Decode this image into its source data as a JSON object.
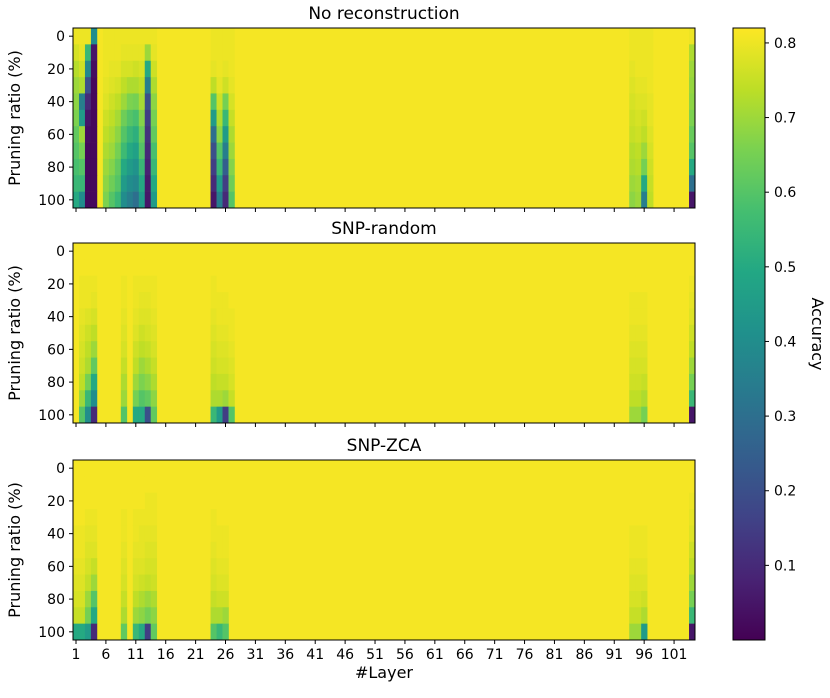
{
  "chart_data": {
    "type": "heatmap",
    "panels": [
      {
        "title": "No reconstruction",
        "ylabel": "Pruning ratio (%)",
        "dark_columns": [
          {
            "layer": 1,
            "values": [
              0.8,
              0.77,
              0.73,
              0.7,
              0.68,
              0.66,
              0.62,
              0.6,
              0.58,
              0.55,
              0.5
            ]
          },
          {
            "layer": 2,
            "values": [
              0.8,
              0.79,
              0.76,
              0.72,
              0.35,
              0.45,
              0.7,
              0.65,
              0.6,
              0.55,
              0.4
            ]
          },
          {
            "layer": 3,
            "values": [
              0.8,
              0.55,
              0.38,
              0.2,
              0.1,
              0.05,
              0.03,
              0.02,
              0.02,
              0.02,
              0.02
            ]
          },
          {
            "layer": 4,
            "values": [
              0.4,
              0.05,
              0.03,
              0.02,
              0.02,
              0.02,
              0.02,
              0.02,
              0.02,
              0.02,
              0.02
            ]
          },
          {
            "layer": 6,
            "values": [
              0.8,
              0.8,
              0.8,
              0.79,
              0.78,
              0.76,
              0.74,
              0.72,
              0.7,
              0.68,
              0.66
            ]
          },
          {
            "layer": 7,
            "values": [
              0.8,
              0.8,
              0.79,
              0.78,
              0.76,
              0.74,
              0.72,
              0.7,
              0.67,
              0.64,
              0.6
            ]
          },
          {
            "layer": 8,
            "values": [
              0.8,
              0.8,
              0.79,
              0.77,
              0.74,
              0.71,
              0.68,
              0.65,
              0.62,
              0.6,
              0.55
            ]
          },
          {
            "layer": 9,
            "values": [
              0.8,
              0.79,
              0.77,
              0.74,
              0.7,
              0.64,
              0.6,
              0.56,
              0.5,
              0.45,
              0.4
            ]
          },
          {
            "layer": 10,
            "values": [
              0.8,
              0.79,
              0.77,
              0.72,
              0.66,
              0.6,
              0.55,
              0.5,
              0.45,
              0.4,
              0.35
            ]
          },
          {
            "layer": 11,
            "values": [
              0.8,
              0.79,
              0.76,
              0.72,
              0.65,
              0.58,
              0.52,
              0.47,
              0.42,
              0.38,
              0.3
            ]
          },
          {
            "layer": 12,
            "values": [
              0.8,
              0.79,
              0.77,
              0.74,
              0.71,
              0.67,
              0.63,
              0.6,
              0.55,
              0.5,
              0.45
            ]
          },
          {
            "layer": 13,
            "values": [
              0.8,
              0.7,
              0.5,
              0.35,
              0.2,
              0.15,
              0.12,
              0.1,
              0.08,
              0.06,
              0.05
            ]
          },
          {
            "layer": 14,
            "values": [
              0.8,
              0.79,
              0.76,
              0.72,
              0.68,
              0.65,
              0.62,
              0.58,
              0.55,
              0.5,
              0.45
            ]
          },
          {
            "layer": 24,
            "values": [
              0.8,
              0.8,
              0.79,
              0.74,
              0.6,
              0.45,
              0.3,
              0.2,
              0.15,
              0.1,
              0.05
            ]
          },
          {
            "layer": 25,
            "values": [
              0.8,
              0.8,
              0.8,
              0.79,
              0.76,
              0.72,
              0.68,
              0.6,
              0.55,
              0.45,
              0.35
            ]
          },
          {
            "layer": 26,
            "values": [
              0.8,
              0.8,
              0.79,
              0.76,
              0.65,
              0.55,
              0.45,
              0.35,
              0.25,
              0.15,
              0.1
            ]
          },
          {
            "layer": 27,
            "values": [
              0.8,
              0.8,
              0.8,
              0.79,
              0.77,
              0.75,
              0.72,
              0.7,
              0.67,
              0.64,
              0.6
            ]
          },
          {
            "layer": 94,
            "values": [
              0.8,
              0.8,
              0.79,
              0.78,
              0.77,
              0.76,
              0.75,
              0.73,
              0.72,
              0.7,
              0.68
            ]
          },
          {
            "layer": 95,
            "values": [
              0.8,
              0.8,
              0.8,
              0.79,
              0.78,
              0.77,
              0.76,
              0.74,
              0.73,
              0.71,
              0.7
            ]
          },
          {
            "layer": 96,
            "values": [
              0.8,
              0.8,
              0.8,
              0.79,
              0.78,
              0.76,
              0.74,
              0.7,
              0.65,
              0.5,
              0.35
            ]
          },
          {
            "layer": 97,
            "values": [
              0.8,
              0.8,
              0.8,
              0.8,
              0.79,
              0.79,
              0.78,
              0.77,
              0.76,
              0.75,
              0.74
            ]
          },
          {
            "layer": 104,
            "values": [
              0.8,
              0.72,
              0.7,
              0.69,
              0.68,
              0.66,
              0.63,
              0.6,
              0.5,
              0.3,
              0.05
            ]
          }
        ]
      },
      {
        "title": "SNP-random",
        "ylabel": "Pruning ratio (%)",
        "dark_columns": [
          {
            "layer": 2,
            "values": [
              0.81,
              0.81,
              0.8,
              0.8,
              0.79,
              0.78,
              0.77,
              0.76,
              0.74,
              0.7,
              0.6
            ]
          },
          {
            "layer": 3,
            "values": [
              0.81,
              0.81,
              0.8,
              0.8,
              0.78,
              0.76,
              0.74,
              0.72,
              0.65,
              0.55,
              0.4
            ]
          },
          {
            "layer": 4,
            "values": [
              0.81,
              0.81,
              0.8,
              0.79,
              0.77,
              0.74,
              0.7,
              0.62,
              0.5,
              0.4,
              0.1
            ]
          },
          {
            "layer": 9,
            "values": [
              0.81,
              0.81,
              0.8,
              0.8,
              0.79,
              0.78,
              0.77,
              0.75,
              0.72,
              0.7,
              0.6
            ]
          },
          {
            "layer": 11,
            "values": [
              0.81,
              0.81,
              0.8,
              0.8,
              0.79,
              0.78,
              0.76,
              0.74,
              0.7,
              0.65,
              0.5
            ]
          },
          {
            "layer": 12,
            "values": [
              0.81,
              0.81,
              0.8,
              0.79,
              0.78,
              0.76,
              0.74,
              0.7,
              0.66,
              0.6,
              0.5
            ]
          },
          {
            "layer": 13,
            "values": [
              0.81,
              0.81,
              0.8,
              0.79,
              0.78,
              0.77,
              0.75,
              0.72,
              0.68,
              0.62,
              0.2
            ]
          },
          {
            "layer": 14,
            "values": [
              0.81,
              0.81,
              0.8,
              0.8,
              0.79,
              0.78,
              0.77,
              0.75,
              0.72,
              0.68,
              0.62
            ]
          },
          {
            "layer": 24,
            "values": [
              0.81,
              0.81,
              0.8,
              0.8,
              0.79,
              0.78,
              0.77,
              0.76,
              0.74,
              0.72,
              0.55
            ]
          },
          {
            "layer": 25,
            "values": [
              0.81,
              0.81,
              0.81,
              0.8,
              0.8,
              0.79,
              0.78,
              0.77,
              0.75,
              0.72,
              0.45
            ]
          },
          {
            "layer": 26,
            "values": [
              0.81,
              0.81,
              0.81,
              0.8,
              0.8,
              0.79,
              0.78,
              0.77,
              0.75,
              0.7,
              0.15
            ]
          },
          {
            "layer": 27,
            "values": [
              0.81,
              0.81,
              0.81,
              0.81,
              0.8,
              0.8,
              0.79,
              0.78,
              0.77,
              0.75,
              0.6
            ]
          },
          {
            "layer": 94,
            "values": [
              0.81,
              0.81,
              0.81,
              0.8,
              0.8,
              0.79,
              0.78,
              0.77,
              0.76,
              0.74,
              0.7
            ]
          },
          {
            "layer": 95,
            "values": [
              0.81,
              0.81,
              0.81,
              0.8,
              0.8,
              0.79,
              0.78,
              0.77,
              0.76,
              0.74,
              0.7
            ]
          },
          {
            "layer": 96,
            "values": [
              0.81,
              0.81,
              0.81,
              0.8,
              0.8,
              0.79,
              0.78,
              0.77,
              0.75,
              0.72,
              0.65
            ]
          },
          {
            "layer": 104,
            "values": [
              0.81,
              0.81,
              0.8,
              0.79,
              0.78,
              0.76,
              0.74,
              0.7,
              0.65,
              0.55,
              0.05
            ]
          }
        ]
      },
      {
        "title": "SNP-ZCA",
        "ylabel": "Pruning ratio (%)",
        "dark_columns": [
          {
            "layer": 1,
            "values": [
              0.81,
              0.81,
              0.81,
              0.81,
              0.8,
              0.8,
              0.79,
              0.78,
              0.77,
              0.75,
              0.5
            ]
          },
          {
            "layer": 2,
            "values": [
              0.81,
              0.81,
              0.81,
              0.81,
              0.8,
              0.8,
              0.79,
              0.78,
              0.77,
              0.75,
              0.5
            ]
          },
          {
            "layer": 3,
            "values": [
              0.81,
              0.81,
              0.81,
              0.8,
              0.79,
              0.78,
              0.77,
              0.75,
              0.7,
              0.65,
              0.45
            ]
          },
          {
            "layer": 4,
            "values": [
              0.81,
              0.81,
              0.81,
              0.8,
              0.79,
              0.78,
              0.75,
              0.7,
              0.6,
              0.5,
              0.1
            ]
          },
          {
            "layer": 9,
            "values": [
              0.81,
              0.81,
              0.81,
              0.8,
              0.8,
              0.79,
              0.78,
              0.77,
              0.75,
              0.72,
              0.62
            ]
          },
          {
            "layer": 11,
            "values": [
              0.81,
              0.81,
              0.81,
              0.8,
              0.8,
              0.79,
              0.78,
              0.77,
              0.74,
              0.7,
              0.55
            ]
          },
          {
            "layer": 12,
            "values": [
              0.81,
              0.81,
              0.81,
              0.8,
              0.79,
              0.79,
              0.78,
              0.76,
              0.72,
              0.68,
              0.5
            ]
          },
          {
            "layer": 13,
            "values": [
              0.81,
              0.81,
              0.8,
              0.8,
              0.79,
              0.78,
              0.77,
              0.75,
              0.7,
              0.65,
              0.15
            ]
          },
          {
            "layer": 14,
            "values": [
              0.81,
              0.81,
              0.8,
              0.8,
              0.79,
              0.78,
              0.77,
              0.76,
              0.72,
              0.68,
              0.62
            ]
          },
          {
            "layer": 24,
            "values": [
              0.81,
              0.81,
              0.81,
              0.8,
              0.8,
              0.79,
              0.78,
              0.77,
              0.75,
              0.72,
              0.6
            ]
          },
          {
            "layer": 25,
            "values": [
              0.81,
              0.81,
              0.81,
              0.81,
              0.8,
              0.8,
              0.79,
              0.78,
              0.76,
              0.72,
              0.55
            ]
          },
          {
            "layer": 26,
            "values": [
              0.81,
              0.81,
              0.81,
              0.81,
              0.8,
              0.8,
              0.79,
              0.78,
              0.76,
              0.7,
              0.6
            ]
          },
          {
            "layer": 94,
            "values": [
              0.81,
              0.81,
              0.81,
              0.81,
              0.8,
              0.8,
              0.79,
              0.78,
              0.77,
              0.75,
              0.7
            ]
          },
          {
            "layer": 95,
            "values": [
              0.81,
              0.81,
              0.81,
              0.81,
              0.8,
              0.8,
              0.79,
              0.78,
              0.77,
              0.75,
              0.7
            ]
          },
          {
            "layer": 96,
            "values": [
              0.81,
              0.81,
              0.81,
              0.81,
              0.8,
              0.8,
              0.79,
              0.78,
              0.76,
              0.72,
              0.45
            ]
          },
          {
            "layer": 104,
            "values": [
              0.81,
              0.81,
              0.8,
              0.79,
              0.78,
              0.76,
              0.74,
              0.7,
              0.65,
              0.55,
              0.05
            ]
          }
        ]
      }
    ],
    "x": {
      "label": "#Layer",
      "layers": 104,
      "ticks": [
        1,
        6,
        11,
        16,
        21,
        26,
        31,
        36,
        41,
        46,
        51,
        56,
        61,
        66,
        71,
        76,
        81,
        86,
        91,
        96,
        101
      ]
    },
    "y": {
      "ratios": [
        0,
        10,
        20,
        30,
        40,
        50,
        60,
        70,
        80,
        90,
        100
      ],
      "ticks": [
        0,
        20,
        40,
        60,
        80,
        100
      ]
    },
    "default_value": 0.81,
    "colorbar": {
      "label": "Accuracy",
      "min": 0.0,
      "max": 0.82,
      "ticks": [
        "0.1",
        "0.2",
        "0.3",
        "0.4",
        "0.5",
        "0.6",
        "0.7",
        "0.8"
      ],
      "colormap": "viridis"
    }
  }
}
